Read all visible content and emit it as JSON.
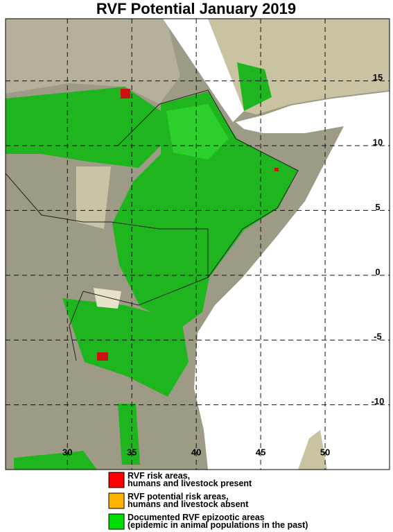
{
  "title": "RVF Potential January 2019",
  "map": {
    "lonlim": [
      25.2,
      55
    ],
    "latlim": [
      -15,
      19.8
    ],
    "lon_ticks": [
      30,
      35,
      40,
      45,
      50
    ],
    "lat_ticks": [
      15,
      10,
      5,
      0,
      -5,
      -10
    ]
  },
  "legend": [
    {
      "color": "#ff0000",
      "lines": [
        "RVF risk areas,",
        "humans and livestock present"
      ]
    },
    {
      "color": "#ffb400",
      "lines": [
        "RVF potential risk areas,",
        "humans and livestock absent"
      ]
    },
    {
      "color": "#00dd00",
      "lines": [
        "Documented RVF epizootic areas",
        "(epidemic in animal populations in the past)"
      ]
    }
  ]
}
